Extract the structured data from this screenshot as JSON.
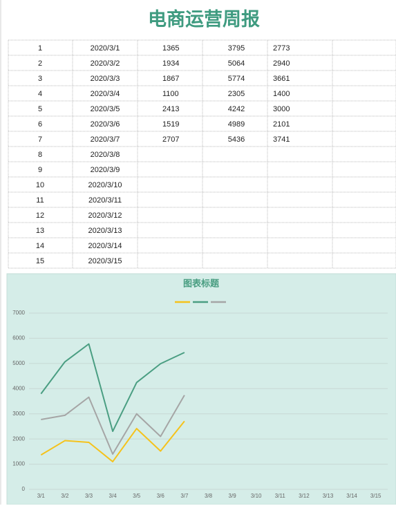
{
  "header": {
    "title": "电商运营周报"
  },
  "table": {
    "rows": [
      [
        1,
        "2020/3/1",
        1365,
        3795,
        2773
      ],
      [
        2,
        "2020/3/2",
        1934,
        5064,
        2940
      ],
      [
        3,
        "2020/3/3",
        1867,
        5774,
        3661
      ],
      [
        4,
        "2020/3/4",
        1100,
        2305,
        1400
      ],
      [
        5,
        "2020/3/5",
        2413,
        4242,
        3000
      ],
      [
        6,
        "2020/3/6",
        1519,
        4989,
        2101
      ],
      [
        7,
        "2020/3/7",
        2707,
        5436,
        3741
      ],
      [
        8,
        "2020/3/8"
      ],
      [
        9,
        "2020/3/9"
      ],
      [
        10,
        "2020/3/10"
      ],
      [
        11,
        "2020/3/11"
      ],
      [
        12,
        "2020/3/12"
      ],
      [
        13,
        "2020/3/13"
      ],
      [
        14,
        "2020/3/14"
      ],
      [
        15,
        "2020/3/15"
      ]
    ]
  },
  "chart_data": {
    "type": "line",
    "title": "图表标题",
    "categories": [
      "3/1",
      "3/2",
      "3/3",
      "3/4",
      "3/5",
      "3/6",
      "3/7",
      "3/8",
      "3/9",
      "3/10",
      "3/11",
      "3/12",
      "3/13",
      "3/14",
      "3/15"
    ],
    "series": [
      {
        "color": "#f5c21b",
        "values": [
          1365,
          1934,
          1867,
          1100,
          2413,
          1519,
          2707,
          null,
          null,
          null,
          null,
          null,
          null,
          null,
          null
        ]
      },
      {
        "color": "#4a9e82",
        "values": [
          3795,
          5064,
          5774,
          2305,
          4242,
          4989,
          5436,
          null,
          null,
          null,
          null,
          null,
          null,
          null,
          null
        ]
      },
      {
        "color": "#a5a5a5",
        "values": [
          2773,
          2940,
          3661,
          1400,
          3000,
          2101,
          3741,
          null,
          null,
          null,
          null,
          null,
          null,
          null,
          null
        ]
      }
    ],
    "ylim": [
      0,
      7000
    ],
    "yticks": [
      0,
      1000,
      2000,
      3000,
      4000,
      5000,
      6000,
      7000
    ],
    "grid": true,
    "legend": "top"
  }
}
